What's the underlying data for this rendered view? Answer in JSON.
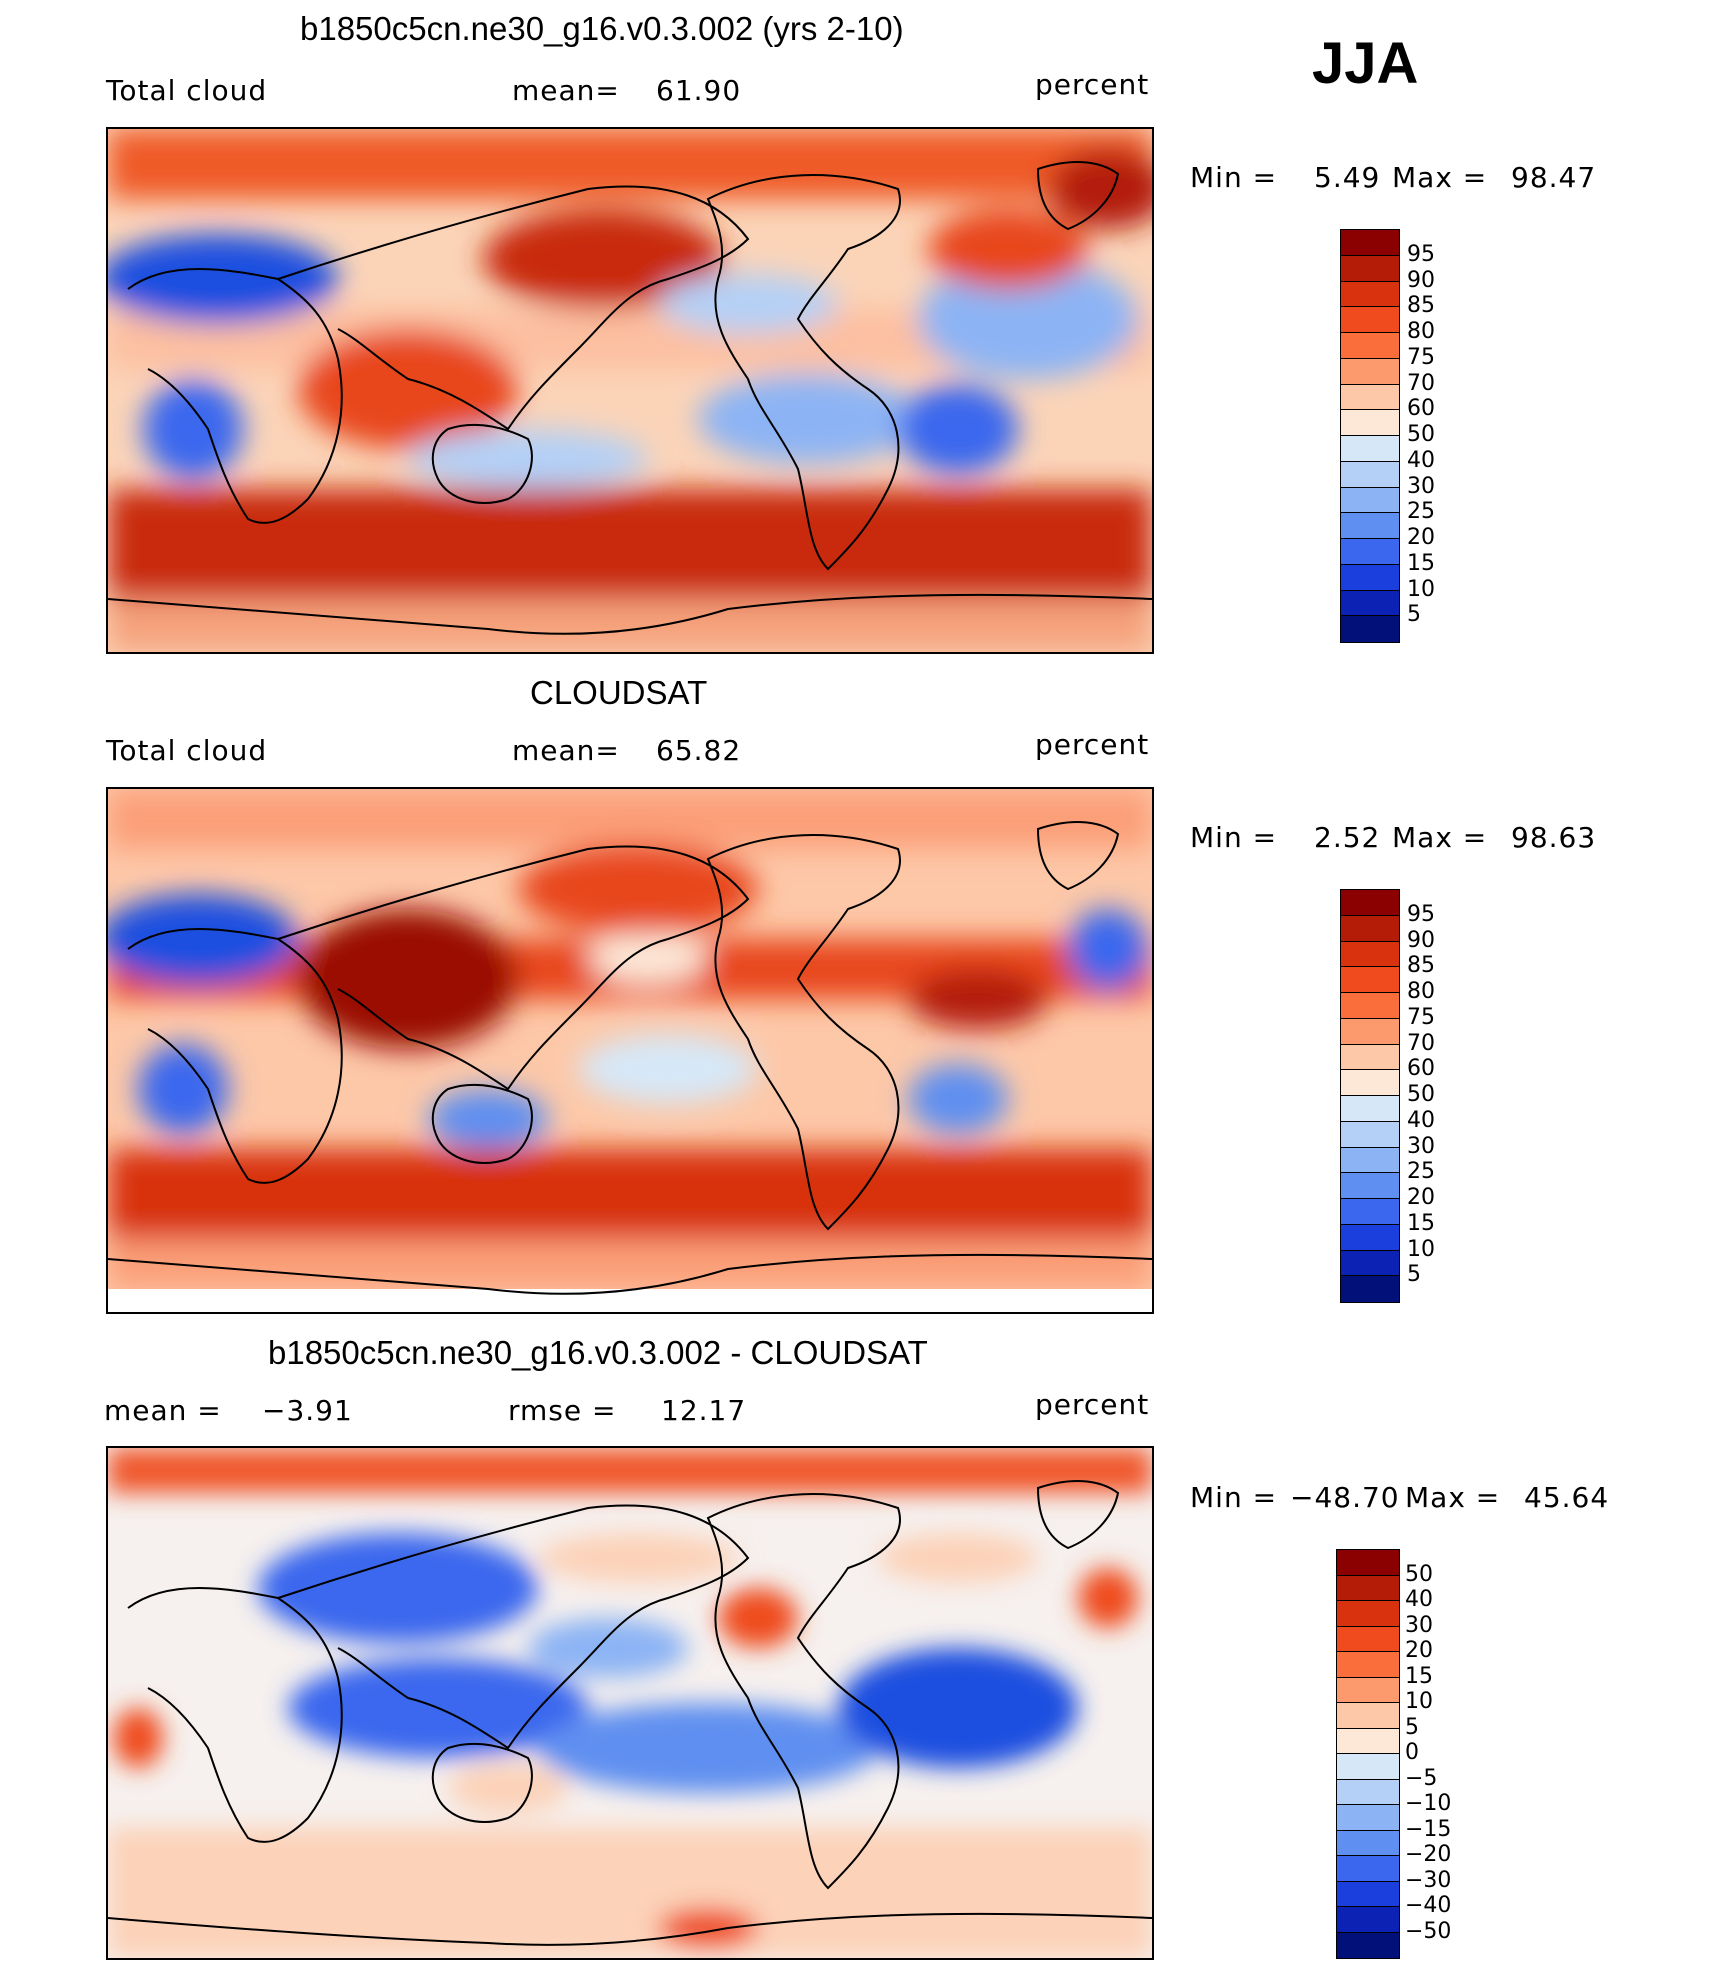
{
  "season": "JJA",
  "panels": [
    {
      "id": "model",
      "title": "b1850c5cn.ne30_g16.v0.3.002 (yrs 2-10)",
      "left_label": "Total cloud",
      "stat_label": "mean=",
      "stat_value": "61.90",
      "units": "percent",
      "min_label": "Min =",
      "min_value": "5.49",
      "max_label": "Max =",
      "max_value": "98.47"
    },
    {
      "id": "obs",
      "title": "CLOUDSAT",
      "left_label": "Total cloud",
      "stat_label": "mean=",
      "stat_value": "65.82",
      "units": "percent",
      "min_label": "Min =",
      "min_value": "2.52",
      "max_label": "Max =",
      "max_value": "98.63"
    },
    {
      "id": "diff",
      "title": "b1850c5cn.ne30_g16.v0.3.002 - CLOUDSAT",
      "left_label": "mean =",
      "left_value": "−3.91",
      "stat_label": "rmse =",
      "stat_value": "12.17",
      "units": "percent",
      "min_label": "Min =",
      "min_value": "−48.70",
      "max_label": "Max =",
      "max_value": "45.64"
    }
  ],
  "colorbar_abs": {
    "labels": [
      "95",
      "90",
      "85",
      "80",
      "75",
      "70",
      "60",
      "50",
      "40",
      "30",
      "25",
      "20",
      "15",
      "10",
      "5"
    ],
    "colors": [
      "#8b0000",
      "#b41c08",
      "#d8320f",
      "#ef4b1f",
      "#fa6e3c",
      "#fc9a6e",
      "#fdc8a8",
      "#fde8d8",
      "#d6e8f8",
      "#b4d0f6",
      "#8cb4f4",
      "#5f8ff0",
      "#3a67ee",
      "#1a3fdc",
      "#0b22b4",
      "#02107a"
    ]
  },
  "colorbar_diff": {
    "labels": [
      "50",
      "40",
      "30",
      "20",
      "15",
      "10",
      "5",
      "0",
      "−5",
      "−10",
      "−15",
      "−20",
      "−30",
      "−40",
      "−50"
    ],
    "colors": [
      "#8b0000",
      "#b41c08",
      "#d8320f",
      "#ef4b1f",
      "#fa6e3c",
      "#fc9a6e",
      "#fdc8a8",
      "#fde8d8",
      "#d6e8f8",
      "#b4d0f6",
      "#8cb4f4",
      "#5f8ff0",
      "#3a67ee",
      "#1a3fdc",
      "#0b22b4",
      "#02107a"
    ]
  }
}
